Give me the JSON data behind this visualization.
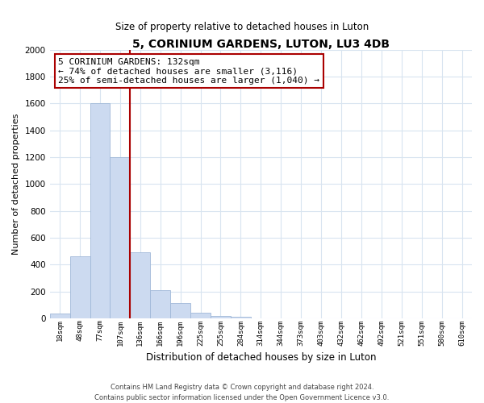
{
  "title": "5, CORINIUM GARDENS, LUTON, LU3 4DB",
  "subtitle": "Size of property relative to detached houses in Luton",
  "xlabel": "Distribution of detached houses by size in Luton",
  "ylabel": "Number of detached properties",
  "bar_labels": [
    "18sqm",
    "48sqm",
    "77sqm",
    "107sqm",
    "136sqm",
    "166sqm",
    "196sqm",
    "225sqm",
    "255sqm",
    "284sqm",
    "314sqm",
    "344sqm",
    "373sqm",
    "403sqm",
    "432sqm",
    "462sqm",
    "492sqm",
    "521sqm",
    "551sqm",
    "580sqm",
    "610sqm"
  ],
  "bar_values": [
    35,
    460,
    1600,
    1200,
    490,
    210,
    115,
    45,
    20,
    10,
    0,
    0,
    0,
    0,
    0,
    0,
    0,
    0,
    0,
    0,
    0
  ],
  "bar_color": "#ccdaf0",
  "bar_edge_color": "#a0b8d8",
  "property_line_color": "#aa0000",
  "annotation_title": "5 CORINIUM GARDENS: 132sqm",
  "annotation_line1": "← 74% of detached houses are smaller (3,116)",
  "annotation_line2": "25% of semi-detached houses are larger (1,040) →",
  "annotation_box_color": "#ffffff",
  "annotation_box_edge_color": "#aa0000",
  "ylim": [
    0,
    2000
  ],
  "yticks": [
    0,
    200,
    400,
    600,
    800,
    1000,
    1200,
    1400,
    1600,
    1800,
    2000
  ],
  "footnote1": "Contains HM Land Registry data © Crown copyright and database right 2024.",
  "footnote2": "Contains public sector information licensed under the Open Government Licence v3.0.",
  "bg_color": "#ffffff",
  "grid_color": "#d8e4f0"
}
